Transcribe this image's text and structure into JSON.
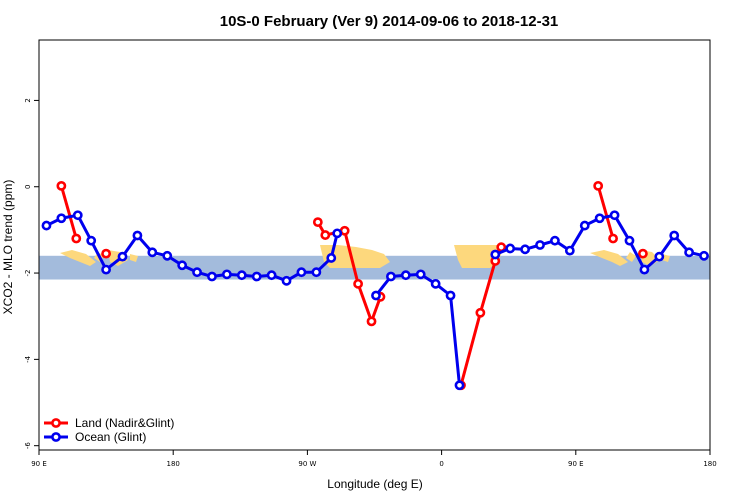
{
  "chart_data": {
    "type": "line",
    "title": "10S-0 February (Ver 9)   2014-09-06 to 2018-12-31",
    "xlabel": "Longitude (deg E)",
    "ylabel": "XCO2 - MLO trend (ppm)",
    "xlim": [
      90,
      540
    ],
    "ylim": [
      -6.1,
      3.4
    ],
    "x_ticks": [
      {
        "value": 90,
        "label": "90 E"
      },
      {
        "value": 180,
        "label": "180"
      },
      {
        "value": 270,
        "label": "90 W"
      },
      {
        "value": 360,
        "label": "0"
      },
      {
        "value": 450,
        "label": "90 E"
      },
      {
        "value": 540,
        "label": "180"
      }
    ],
    "y_ticks": [
      {
        "value": 2,
        "label": "2"
      },
      {
        "value": 0,
        "label": "0"
      },
      {
        "value": -2,
        "label": "-2"
      },
      {
        "value": -4,
        "label": "-4"
      },
      {
        "value": -6,
        "label": "-6"
      }
    ],
    "map_band": {
      "ymin": -2.15,
      "ymax": -1.6,
      "ocean_color": "#a3bbdc",
      "land_color": "#fdd87d"
    },
    "legend": {
      "position": "bottom-left"
    },
    "series": [
      {
        "name": "Land (Nadir&Glint)",
        "color": "#ff0000",
        "segments": [
          [
            [
              105,
              0.02
            ],
            [
              115,
              -1.2
            ]
          ],
          [
            [
              135,
              -1.55
            ]
          ],
          [
            [
              277,
              -0.82
            ],
            [
              282,
              -1.12
            ],
            [
              295,
              -1.02
            ],
            [
              304,
              -2.25
            ],
            [
              313,
              -3.12
            ],
            [
              319,
              -2.55
            ]
          ],
          [
            [
              373,
              -4.6
            ],
            [
              386,
              -2.92
            ],
            [
              396,
              -1.72
            ],
            [
              400,
              -1.4
            ]
          ],
          [
            [
              465,
              0.02
            ],
            [
              475,
              -1.2
            ]
          ],
          [
            [
              495,
              -1.55
            ]
          ]
        ]
      },
      {
        "name": "Ocean (Glint)",
        "color": "#0000ee",
        "segments": [
          [
            [
              95,
              -0.9
            ],
            [
              105,
              -0.73
            ],
            [
              116,
              -0.66
            ],
            [
              125,
              -1.25
            ],
            [
              135,
              -1.92
            ],
            [
              146,
              -1.62
            ],
            [
              156,
              -1.13
            ],
            [
              166,
              -1.52
            ],
            [
              176,
              -1.6
            ],
            [
              186,
              -1.82
            ],
            [
              196,
              -1.98
            ],
            [
              206,
              -2.08
            ],
            [
              216,
              -2.03
            ],
            [
              226,
              -2.05
            ],
            [
              236,
              -2.08
            ],
            [
              246,
              -2.05
            ],
            [
              256,
              -2.18
            ],
            [
              266,
              -1.98
            ],
            [
              276,
              -1.98
            ],
            [
              286,
              -1.65
            ],
            [
              290,
              -1.08
            ]
          ],
          [
            [
              316,
              -2.52
            ],
            [
              326,
              -2.08
            ],
            [
              336,
              -2.05
            ],
            [
              346,
              -2.03
            ],
            [
              356,
              -2.25
            ],
            [
              366,
              -2.52
            ],
            [
              372,
              -4.6
            ]
          ],
          [
            [
              396,
              -1.57
            ],
            [
              406,
              -1.43
            ],
            [
              416,
              -1.45
            ],
            [
              426,
              -1.35
            ],
            [
              436,
              -1.25
            ],
            [
              446,
              -1.48
            ],
            [
              456,
              -0.9
            ],
            [
              466,
              -0.73
            ],
            [
              476,
              -0.66
            ],
            [
              486,
              -1.25
            ],
            [
              496,
              -1.92
            ],
            [
              506,
              -1.62
            ],
            [
              516,
              -1.13
            ],
            [
              526,
              -1.52
            ],
            [
              536,
              -1.6
            ]
          ]
        ]
      }
    ]
  }
}
